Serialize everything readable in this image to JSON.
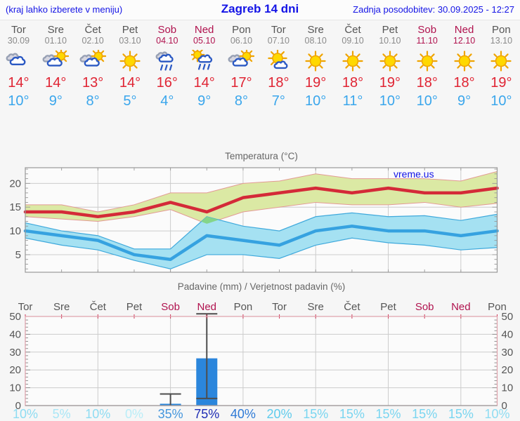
{
  "header": {
    "left_note": "(kraj lahko izberete v meniju)",
    "title": "Zagreb 14 dni",
    "updated": "Zadnja posodobitev: 30.09.2025 - 12:27"
  },
  "colors": {
    "link_blue": "#1414e6",
    "weekend": "#b0124e",
    "weekday": "#555555",
    "date_gray": "#8a8a8a",
    "tmax_red": "#e02433",
    "tmin_blue": "#3aa6ec",
    "grid": "#cccccc",
    "axis_gray": "#999999",
    "precip_border_pink": "#dfa0aa"
  },
  "days": [
    {
      "name": "Tor",
      "date": "30.09",
      "weekend": false,
      "icon": "cloudy",
      "tmax": "14°",
      "tmin": "10°",
      "precip_prob": "10%",
      "prob_color": "#8edcf2"
    },
    {
      "name": "Sre",
      "date": "01.10",
      "weekend": false,
      "icon": "sun-cloud",
      "tmax": "14°",
      "tmin": "9°",
      "precip_prob": "5%",
      "prob_color": "#a9e6f6"
    },
    {
      "name": "Čet",
      "date": "02.10",
      "weekend": false,
      "icon": "sun-cloud",
      "tmax": "13°",
      "tmin": "8°",
      "precip_prob": "10%",
      "prob_color": "#8edcf2"
    },
    {
      "name": "Pet",
      "date": "03.10",
      "weekend": false,
      "icon": "sunny",
      "tmax": "14°",
      "tmin": "5°",
      "precip_prob": "0%",
      "prob_color": "#b9edf8"
    },
    {
      "name": "Sob",
      "date": "04.10",
      "weekend": true,
      "icon": "rain",
      "tmax": "16°",
      "tmin": "4°",
      "precip_prob": "35%",
      "prob_color": "#4496dd"
    },
    {
      "name": "Ned",
      "date": "05.10",
      "weekend": true,
      "icon": "sun-rain",
      "tmax": "14°",
      "tmin": "9°",
      "precip_prob": "75%",
      "prob_color": "#1f2db4"
    },
    {
      "name": "Pon",
      "date": "06.10",
      "weekend": false,
      "icon": "sun-cloud",
      "tmax": "17°",
      "tmin": "8°",
      "precip_prob": "40%",
      "prob_color": "#2e7ad6"
    },
    {
      "name": "Tor",
      "date": "07.10",
      "weekend": false,
      "icon": "mostly-sunny",
      "tmax": "18°",
      "tmin": "7°",
      "precip_prob": "20%",
      "prob_color": "#5fcbec"
    },
    {
      "name": "Sre",
      "date": "08.10",
      "weekend": false,
      "icon": "sunny",
      "tmax": "19°",
      "tmin": "10°",
      "precip_prob": "15%",
      "prob_color": "#79d5f0"
    },
    {
      "name": "Čet",
      "date": "09.10",
      "weekend": false,
      "icon": "sunny",
      "tmax": "18°",
      "tmin": "11°",
      "precip_prob": "15%",
      "prob_color": "#79d5f0"
    },
    {
      "name": "Pet",
      "date": "10.10",
      "weekend": false,
      "icon": "sunny",
      "tmax": "19°",
      "tmin": "10°",
      "precip_prob": "15%",
      "prob_color": "#79d5f0"
    },
    {
      "name": "Sob",
      "date": "11.10",
      "weekend": true,
      "icon": "sunny",
      "tmax": "18°",
      "tmin": "10°",
      "precip_prob": "15%",
      "prob_color": "#79d5f0"
    },
    {
      "name": "Ned",
      "date": "12.10",
      "weekend": true,
      "icon": "sunny",
      "tmax": "18°",
      "tmin": "9°",
      "precip_prob": "15%",
      "prob_color": "#79d5f0"
    },
    {
      "name": "Pon",
      "date": "13.10",
      "weekend": false,
      "icon": "sunny",
      "tmax": "19°",
      "tmin": "10°",
      "precip_prob": "10%",
      "prob_color": "#8edcf2"
    }
  ],
  "chart_data": [
    {
      "type": "line",
      "title": "Temperatura (°C)",
      "watermark": "vreme.us",
      "x_labels": [
        "Tor",
        "Sre",
        "Čet",
        "Pet",
        "Sob",
        "Ned",
        "Pon",
        "Tor",
        "Sre",
        "Čet",
        "Pet",
        "Sob",
        "Ned",
        "Pon"
      ],
      "ylim": [
        1.3,
        23.3
      ],
      "yticks": [
        5,
        10,
        15,
        20
      ],
      "grid_days": [
        3,
        5,
        7,
        9,
        11,
        13
      ],
      "series": [
        {
          "name": "max-temp",
          "color": "#d42a38",
          "values": [
            14,
            14,
            13,
            14,
            16,
            14,
            17,
            18,
            19,
            18,
            19,
            18,
            18,
            19
          ]
        },
        {
          "name": "min-temp",
          "color": "#36a2e0",
          "values": [
            10,
            9,
            8,
            5,
            4,
            9,
            8,
            7,
            10,
            11,
            10,
            10,
            9,
            10
          ]
        }
      ],
      "bands": [
        {
          "name": "max-temp-range",
          "fill": "#dbe9a4",
          "stroke": "#e39a94",
          "hi": [
            15.5,
            15.5,
            14,
            15.5,
            18,
            18,
            20,
            20.5,
            22,
            21,
            21,
            21,
            20.5,
            22.5
          ],
          "lo": [
            13,
            12.5,
            12,
            13,
            14.5,
            11.5,
            14,
            15,
            16,
            15.5,
            15.5,
            16,
            15,
            15.8
          ]
        },
        {
          "name": "min-temp-range",
          "fill": "#a5e1f2",
          "stroke": "#3fa9dc",
          "hi": [
            11.7,
            10,
            9,
            6.2,
            6.2,
            13,
            11,
            10,
            13,
            13.8,
            13,
            13.2,
            12.2,
            13.5
          ],
          "lo": [
            8.5,
            7,
            6,
            3.8,
            2,
            5,
            5,
            4.2,
            7,
            8.5,
            7.5,
            7,
            6,
            6.5
          ]
        }
      ],
      "overlap_fill": "#84d589"
    },
    {
      "type": "bar",
      "title": "Padavine (mm) / Verjetnost padavin (%)",
      "ylim": [
        0,
        50
      ],
      "yticks": [
        0,
        10,
        20,
        30,
        40,
        50
      ],
      "grid_days": [
        3,
        5,
        7,
        9,
        11,
        13
      ],
      "bar_color": "#2b86dc",
      "whisker_color": "#4d4d4d",
      "bars": [
        {
          "day": 5,
          "value": 1,
          "whisker_lo": 0,
          "whisker_hi": 6.5
        },
        {
          "day": 6,
          "value": 26.5,
          "whisker_lo": 4,
          "whisker_hi": 51.5
        }
      ],
      "probabilities": [
        "10%",
        "5%",
        "10%",
        "0%",
        "35%",
        "75%",
        "40%",
        "20%",
        "15%",
        "15%",
        "15%",
        "15%",
        "15%",
        "10%"
      ]
    }
  ]
}
